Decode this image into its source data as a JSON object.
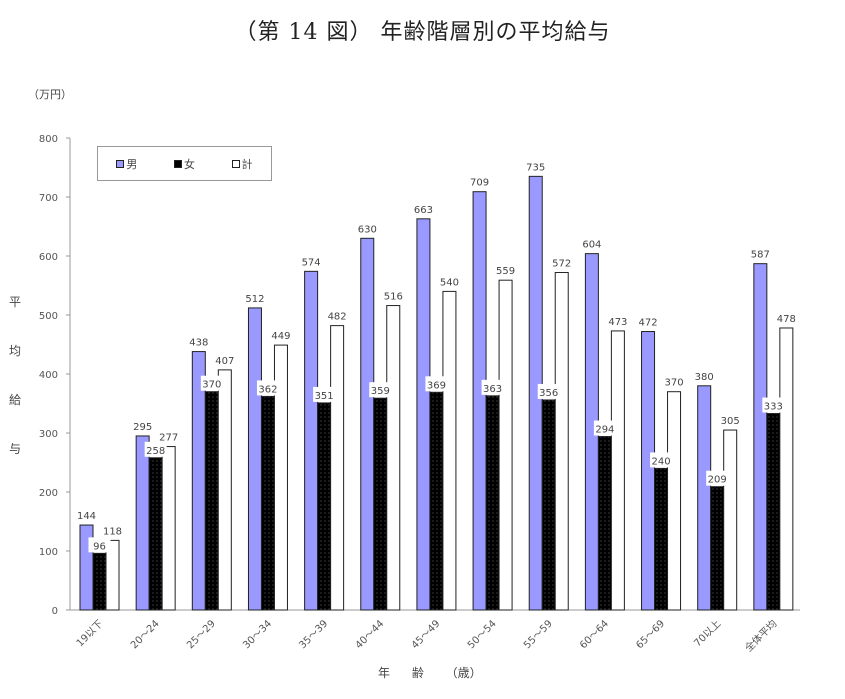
{
  "title": "（第 14 図） 年齢階層別の平均給与",
  "unit_label": "（万円）",
  "y_axis_label": "平均給与",
  "x_axis_label": "年 齢 （歳）",
  "legend": [
    {
      "label": "男",
      "color": "#9999ff"
    },
    {
      "label": "女",
      "color": "#000000"
    },
    {
      "label": "計",
      "color": "#ffffff"
    }
  ],
  "chart_data": {
    "type": "bar",
    "title": "（第 14 図） 年齢階層別の平均給与",
    "xlabel": "年 齢 （歳）",
    "ylabel": "平均給与",
    "unit": "万円",
    "ylim": [
      0,
      800
    ],
    "yticks": [
      0,
      100,
      200,
      300,
      400,
      500,
      600,
      700,
      800
    ],
    "grid": false,
    "legend_position": "top-left inside",
    "categories": [
      "19以下",
      "20～24",
      "25～29",
      "30～34",
      "35～39",
      "40～44",
      "45～49",
      "50～54",
      "55～59",
      "60～64",
      "65～69",
      "70以上",
      "全体平均"
    ],
    "series": [
      {
        "name": "男",
        "color": "#9999ff",
        "values": [
          144,
          295,
          438,
          512,
          574,
          630,
          663,
          709,
          735,
          604,
          472,
          380,
          587
        ]
      },
      {
        "name": "女",
        "color": "#000000",
        "pattern": "dotted",
        "values": [
          96,
          258,
          370,
          362,
          351,
          359,
          369,
          363,
          356,
          294,
          240,
          209,
          333
        ]
      },
      {
        "name": "計",
        "color": "#ffffff",
        "values": [
          118,
          277,
          407,
          449,
          482,
          516,
          540,
          559,
          572,
          473,
          370,
          305,
          478
        ]
      }
    ]
  }
}
